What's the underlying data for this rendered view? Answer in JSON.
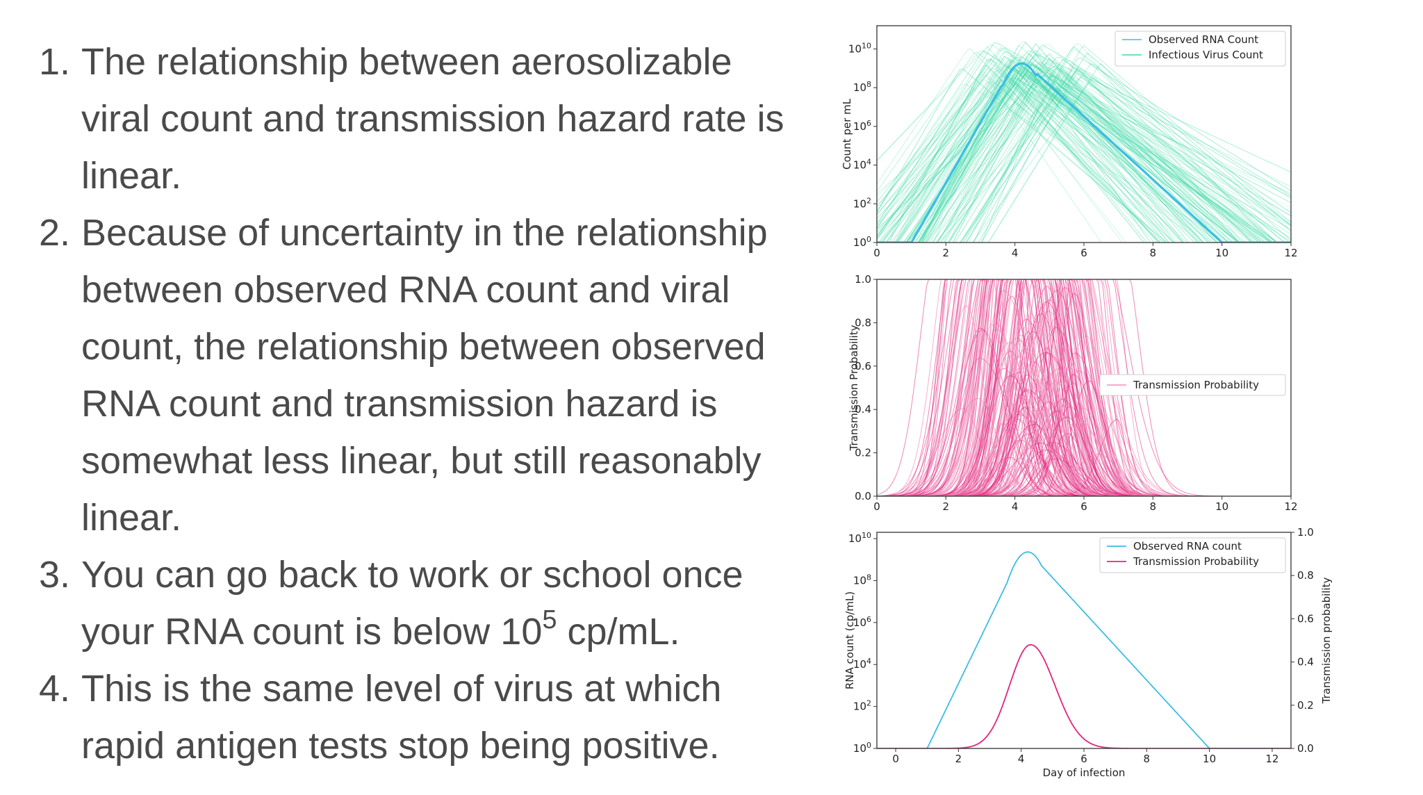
{
  "bullets": [
    {
      "number": "1.",
      "text": "The relationship between aerosolizable viral count and transmission hazard rate is linear."
    },
    {
      "number": "2.",
      "text": "Because of uncertainty in the relationship between observed RNA count and viral count, the relationship between observed RNA count and transmission hazard is somewhat less linear, but still reasonably linear."
    },
    {
      "number": "3.",
      "text_before": "You can go back to work or school once your RNA count is below 10",
      "superscript": "5",
      "text_after": " cp/mL."
    },
    {
      "number": "4.",
      "text": "This is the same level of virus at which rapid antigen tests stop being positive."
    }
  ],
  "colors": {
    "rna": "#3bbde3",
    "infectious": "#3dd9a7",
    "transmission": "#e0247e",
    "transmission_light": "#f08fbb",
    "text": "#4a4a4a"
  },
  "chart_data": [
    {
      "type": "line",
      "ylabel": "Count per mL",
      "y_scale": "log10",
      "xlim": [
        0,
        12
      ],
      "ylim_exponents": [
        0,
        11.2
      ],
      "x_ticks": [
        "0",
        "2",
        "4",
        "6",
        "8",
        "10",
        "12"
      ],
      "y_ticks": [
        {
          "base": "10",
          "exp": "0",
          "value": 0
        },
        {
          "base": "10",
          "exp": "2",
          "value": 2
        },
        {
          "base": "10",
          "exp": "4",
          "value": 4
        },
        {
          "base": "10",
          "exp": "6",
          "value": 6
        },
        {
          "base": "10",
          "exp": "8",
          "value": 8
        },
        {
          "base": "10",
          "exp": "10",
          "value": 10
        }
      ],
      "legend": [
        "Observed RNA Count",
        "Infectious Virus Count"
      ],
      "legend_position": "top-right",
      "series": [
        {
          "name": "Observed RNA Count",
          "x": [
            0,
            1,
            4.1,
            10,
            12
          ],
          "log10_y": [
            0,
            0,
            9.6,
            0,
            0
          ]
        },
        {
          "name": "Infectious Virus Count",
          "description": "many individual simulated trajectories peaking near day 3-6 at about 10^9-10^10"
        }
      ]
    },
    {
      "type": "line",
      "ylabel": "Transmission Probability",
      "xlim": [
        0,
        12
      ],
      "ylim": [
        0,
        1
      ],
      "x_ticks": [
        "0",
        "2",
        "4",
        "6",
        "8",
        "10",
        "12"
      ],
      "y_ticks": [
        "0.0",
        "0.2",
        "0.4",
        "0.6",
        "0.8",
        "1.0"
      ],
      "legend": [
        "Transmission Probability"
      ],
      "legend_position": "center-right",
      "series": [
        {
          "name": "Transmission Probability",
          "description": "many individual simulated curves rising from ~day 1.5, saturating at 1.0 around days 2.5-6, falling to 0 by ~day 8"
        }
      ]
    },
    {
      "type": "line",
      "xlabel": "Day of infection",
      "ylabel": "RNA count (cp/mL)",
      "y2label": "Transmission probability",
      "y_scale": "log10",
      "xlim": [
        -0.6,
        12.6
      ],
      "ylim_exponents": [
        0,
        10.3
      ],
      "y2lim": [
        0,
        1
      ],
      "x_ticks": [
        "0",
        "2",
        "4",
        "6",
        "8",
        "10",
        "12"
      ],
      "y_ticks": [
        {
          "base": "10",
          "exp": "0",
          "value": 0
        },
        {
          "base": "10",
          "exp": "2",
          "value": 2
        },
        {
          "base": "10",
          "exp": "4",
          "value": 4
        },
        {
          "base": "10",
          "exp": "6",
          "value": 6
        },
        {
          "base": "10",
          "exp": "8",
          "value": 8
        },
        {
          "base": "10",
          "exp": "10",
          "value": 10
        }
      ],
      "y2_ticks": [
        "0.0",
        "0.2",
        "0.4",
        "0.6",
        "0.8",
        "1.0"
      ],
      "legend": [
        "Observed RNA count",
        "Transmission Probability"
      ],
      "legend_position": "top-right",
      "series": [
        {
          "name": "Observed RNA count",
          "axis": "left",
          "x": [
            0,
            1,
            4.1,
            10,
            12
          ],
          "log10_y": [
            0,
            0,
            9.6,
            0,
            0
          ]
        },
        {
          "name": "Transmission Probability",
          "axis": "right",
          "peak_x": 4.3,
          "peak_y": 0.48,
          "x": [
            0,
            1,
            2,
            3,
            4,
            4.3,
            5,
            6,
            7,
            8,
            12
          ],
          "y": [
            0,
            0.002,
            0.04,
            0.22,
            0.45,
            0.48,
            0.38,
            0.12,
            0.02,
            0.002,
            0
          ]
        }
      ]
    }
  ]
}
